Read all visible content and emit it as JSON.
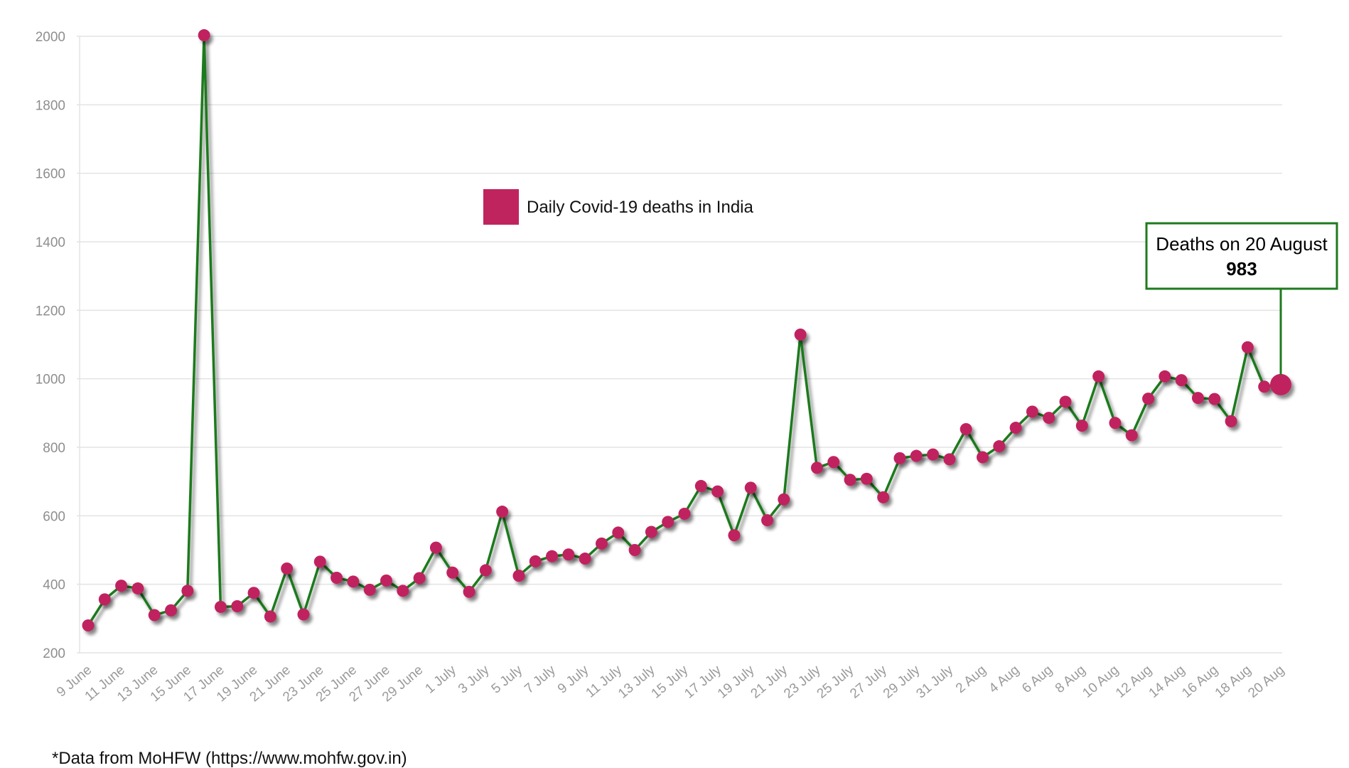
{
  "chart_data": {
    "type": "line",
    "title": "",
    "xlabel": "",
    "ylabel": "",
    "ylim": [
      200,
      2000
    ],
    "yticks": [
      200,
      400,
      600,
      800,
      1000,
      1200,
      1400,
      1600,
      1800,
      2000
    ],
    "grid": true,
    "legend_position": "top-center",
    "x_tick_labels": [
      "9 June",
      "11 June",
      "13 June",
      "15 June",
      "17 June",
      "19 June",
      "21 June",
      "23 June",
      "25 June",
      "27 June",
      "29 June",
      "1 July",
      "3 July",
      "5 July",
      "7 July",
      "9 July",
      "11 July",
      "13 July",
      "15 July",
      "17 July",
      "19 July",
      "21 July",
      "23 July",
      "25 July",
      "27 July",
      "29 July",
      "31 July",
      "2 Aug",
      "4 Aug",
      "6 Aug",
      "8 Aug",
      "10 Aug",
      "12 Aug",
      "14 Aug",
      "16 Aug",
      "18 Aug",
      "20 Aug"
    ],
    "series": [
      {
        "name": "Daily Covid-19 deaths in India",
        "line_color": "#1e7a1e",
        "marker_color": "#c0245e",
        "values": [
          280,
          356,
          396,
          388,
          310,
          324,
          381,
          2003,
          334,
          336,
          375,
          306,
          446,
          312,
          466,
          419,
          408,
          384,
          411,
          381,
          418,
          507,
          434,
          378,
          441,
          612,
          425,
          467,
          482,
          487,
          475,
          519,
          551,
          500,
          553,
          582,
          606,
          687,
          671,
          543,
          682,
          587,
          648,
          1129,
          740,
          757,
          705,
          708,
          654,
          768,
          775,
          779,
          765,
          853,
          771,
          803,
          857,
          904,
          886,
          933,
          863,
          1007,
          871,
          835,
          942,
          1007,
          996,
          944,
          941,
          876,
          1092,
          977,
          983
        ]
      }
    ],
    "annotations": [
      {
        "title": "Deaths on 20 August",
        "value": "983",
        "border_color": "#1e7a1e"
      }
    ],
    "footnote": "*Data from MoHFW (https://www.mohfw.gov.in)"
  }
}
